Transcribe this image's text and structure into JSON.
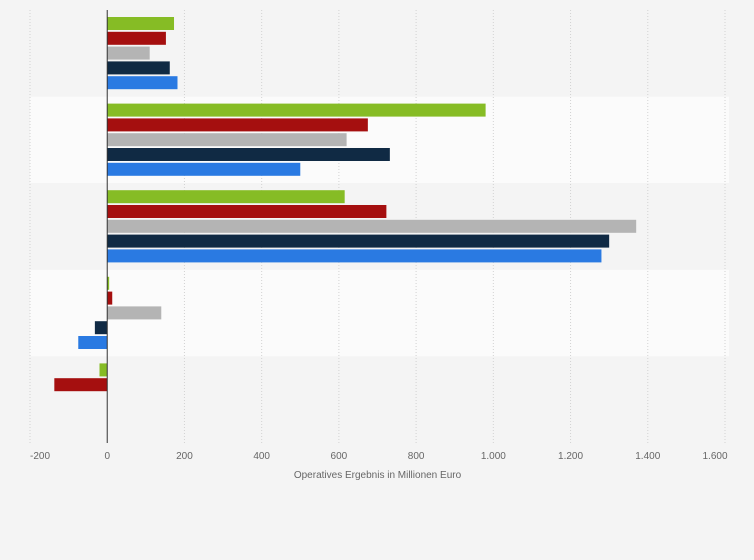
{
  "chart_data": {
    "type": "bar",
    "orientation": "horizontal",
    "categories": [
      "",
      "",
      "",
      "",
      ""
    ],
    "series": [
      {
        "color": "#86bc25",
        "values": [
          173,
          980,
          615,
          5,
          -20
        ]
      },
      {
        "color": "#a50f0f",
        "values": [
          152,
          675,
          723,
          13,
          -137
        ]
      },
      {
        "color": "#b4b4b4",
        "values": [
          110,
          620,
          1370,
          140,
          null
        ]
      },
      {
        "color": "#102a44",
        "values": [
          162,
          732,
          1300,
          -32,
          null
        ]
      },
      {
        "color": "#2a7ae2",
        "values": [
          182,
          500,
          1280,
          -75,
          null
        ]
      }
    ],
    "xlabel": "Operatives Ergebnis in Millionen Euro",
    "ylabel": "",
    "xlim": [
      -200,
      1600
    ],
    "xticks": [
      -200,
      0,
      200,
      400,
      600,
      800,
      1000,
      1200,
      1400,
      1600
    ],
    "xtick_labels": [
      "-200",
      "0",
      "200",
      "400",
      "600",
      "800",
      "1.000",
      "1.200",
      "1.400",
      "1.600"
    ],
    "grid": true,
    "legend": "none"
  }
}
